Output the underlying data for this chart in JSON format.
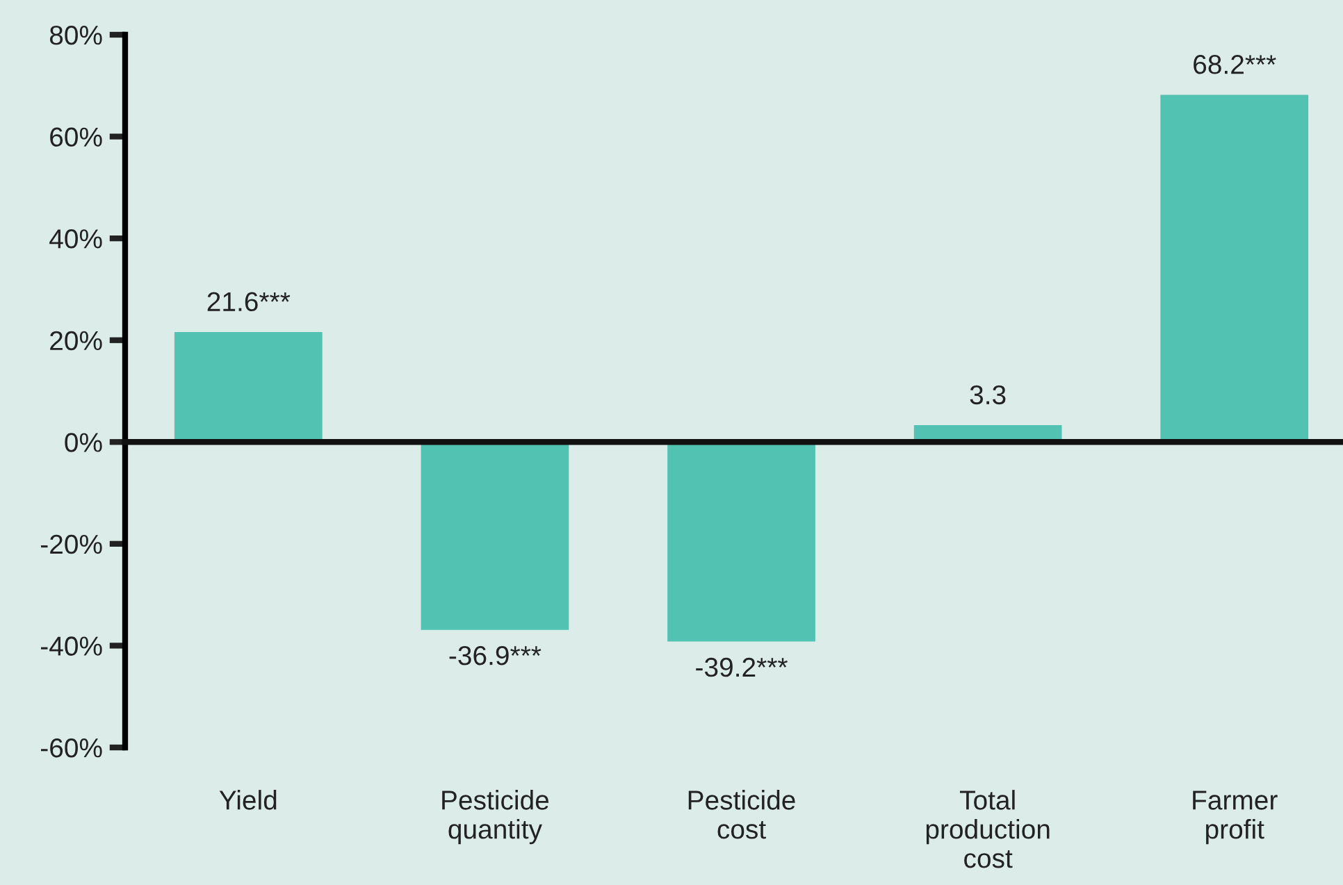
{
  "chart_data": {
    "type": "bar",
    "categories": [
      "Yield",
      "Pesticide\nquantity",
      "Pesticide\ncost",
      "Total\nproduction\ncost",
      "Farmer\nprofit"
    ],
    "values": [
      21.6,
      -36.9,
      -39.2,
      3.3,
      68.2
    ],
    "value_labels": [
      "21.6***",
      "-36.9***",
      "-39.2***",
      "3.3",
      "68.2***"
    ],
    "color": "#52c2b2",
    "ylim": [
      -60,
      80
    ],
    "yticks": [
      {
        "value": -60,
        "label": "-60%"
      },
      {
        "value": -40,
        "label": "-40%"
      },
      {
        "value": -20,
        "label": "-20%"
      },
      {
        "value": 0,
        "label": "0%"
      },
      {
        "value": 20,
        "label": "20%"
      },
      {
        "value": 40,
        "label": "40%"
      },
      {
        "value": 60,
        "label": "60%"
      },
      {
        "value": 80,
        "label": "80%"
      }
    ],
    "legend": false
  }
}
